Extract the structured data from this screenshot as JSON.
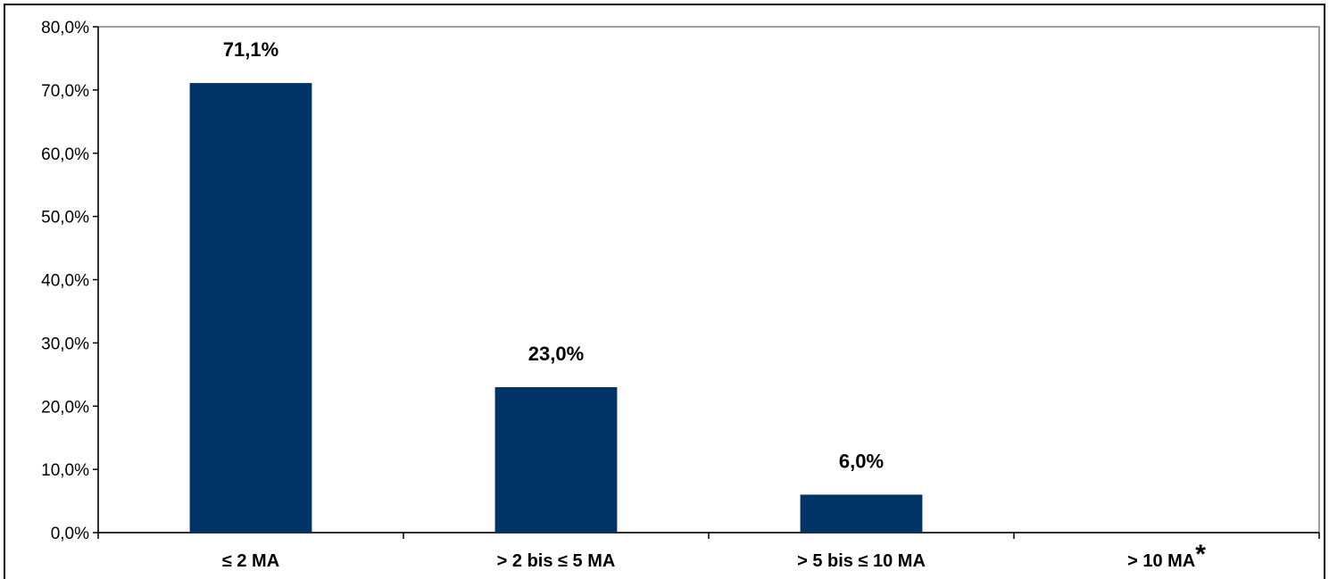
{
  "chart_data": {
    "type": "bar",
    "categories": [
      "≤ 2 MA",
      "> 2 bis ≤ 5 MA",
      "> 5 bis ≤ 10 MA",
      "> 10 MA"
    ],
    "category_footnote_marks": [
      "",
      "",
      "",
      "*"
    ],
    "values": [
      71.1,
      23.0,
      6.0,
      0
    ],
    "data_labels": [
      "71,1%",
      "23,0%",
      "6,0%",
      ""
    ],
    "yticks": [
      "0,0%",
      "10,0%",
      "20,0%",
      "30,0%",
      "40,0%",
      "50,0%",
      "60,0%",
      "70,0%",
      "80,0%"
    ],
    "ylim": [
      0,
      80
    ],
    "title": "",
    "xlabel": "",
    "ylabel": "",
    "grid": false,
    "bar_color": "#003366"
  }
}
